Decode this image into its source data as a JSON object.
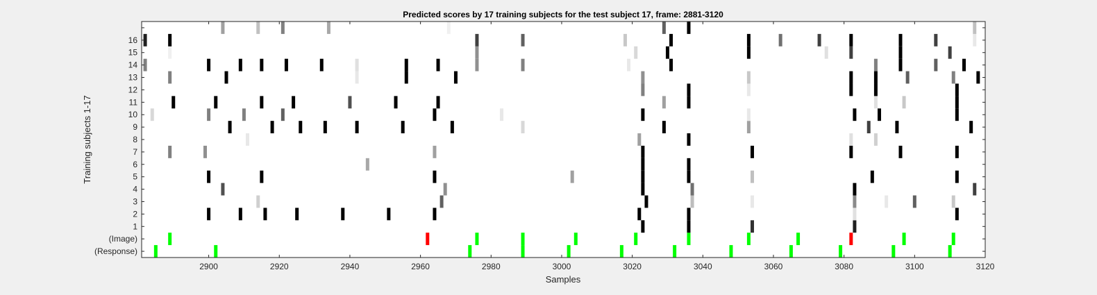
{
  "chart_data": {
    "type": "heatmap",
    "title": "Predicted scores by 17 training subjects for the test subject 17, frame: 2881-3120",
    "xlabel": "Samples",
    "ylabel": "Training subjects 1-17",
    "xlim": [
      2881,
      3120
    ],
    "x_ticks": [
      2900,
      2920,
      2940,
      2960,
      2980,
      3000,
      3020,
      3040,
      3060,
      3080,
      3100,
      3120
    ],
    "y_tick_labels": [
      "(Response)",
      "(Image)",
      "1",
      "2",
      "3",
      "4",
      "5",
      "6",
      "7",
      "8",
      "9",
      "10",
      "11",
      "12",
      "13",
      "14",
      "15",
      "16",
      ""
    ],
    "grid": false,
    "background_color": "#ffffff",
    "figure_color": "#f0f0f0",
    "marker_colors": {
      "correct": "#00ff00",
      "incorrect": "#ff0000"
    },
    "rows": [
      {
        "label": "(Response)",
        "marks": [
          {
            "x": 2885,
            "c": "#00ff00"
          },
          {
            "x": 2902,
            "c": "#00ff00"
          },
          {
            "x": 2974,
            "c": "#00ff00"
          },
          {
            "x": 2989,
            "c": "#00ff00"
          },
          {
            "x": 3002,
            "c": "#00ff00"
          },
          {
            "x": 3017,
            "c": "#00ff00"
          },
          {
            "x": 3032,
            "c": "#00ff00"
          },
          {
            "x": 3048,
            "c": "#00ff00"
          },
          {
            "x": 3065,
            "c": "#00ff00"
          },
          {
            "x": 3079,
            "c": "#00ff00"
          },
          {
            "x": 3094,
            "c": "#00ff00"
          },
          {
            "x": 3110,
            "c": "#00ff00"
          }
        ]
      },
      {
        "label": "(Image)",
        "marks": [
          {
            "x": 2889,
            "c": "#00ff00"
          },
          {
            "x": 2962,
            "c": "#ff0000"
          },
          {
            "x": 2976,
            "c": "#00ff00"
          },
          {
            "x": 2989,
            "c": "#00ff00"
          },
          {
            "x": 3004,
            "c": "#00ff00"
          },
          {
            "x": 3021,
            "c": "#00ff00"
          },
          {
            "x": 3036,
            "c": "#00ff00"
          },
          {
            "x": 3053,
            "c": "#00ff00"
          },
          {
            "x": 3067,
            "c": "#00ff00"
          },
          {
            "x": 3082,
            "c": "#ff0000"
          },
          {
            "x": 3097,
            "c": "#00ff00"
          },
          {
            "x": 3111,
            "c": "#00ff00"
          }
        ]
      },
      {
        "label": "1",
        "marks": [
          {
            "x": 3023,
            "c": "#000000"
          },
          {
            "x": 3036,
            "c": "#000000"
          },
          {
            "x": 3054,
            "c": "#303030"
          },
          {
            "x": 3083,
            "c": "#202020"
          }
        ]
      },
      {
        "label": "2",
        "marks": [
          {
            "x": 2900,
            "c": "#000000"
          },
          {
            "x": 2909,
            "c": "#000000"
          },
          {
            "x": 2916,
            "c": "#000000"
          },
          {
            "x": 2925,
            "c": "#000000"
          },
          {
            "x": 2938,
            "c": "#000000"
          },
          {
            "x": 2951,
            "c": "#000000"
          },
          {
            "x": 2964,
            "c": "#000000"
          },
          {
            "x": 3022,
            "c": "#000000"
          },
          {
            "x": 3036,
            "c": "#000000"
          },
          {
            "x": 3083,
            "c": "#e0e0e0"
          },
          {
            "x": 3112,
            "c": "#000000"
          }
        ]
      },
      {
        "label": "3",
        "marks": [
          {
            "x": 2914,
            "c": "#cfcfcf"
          },
          {
            "x": 2966,
            "c": "#606060"
          },
          {
            "x": 3024,
            "c": "#000000"
          },
          {
            "x": 3037,
            "c": "#bdbdbd"
          },
          {
            "x": 3054,
            "c": "#e8e8e8"
          },
          {
            "x": 3083,
            "c": "#8a8a8a"
          },
          {
            "x": 3092,
            "c": "#e8e8e8"
          },
          {
            "x": 3100,
            "c": "#606060"
          },
          {
            "x": 3111,
            "c": "#c8c8c8"
          }
        ]
      },
      {
        "label": "4",
        "marks": [
          {
            "x": 2904,
            "c": "#505050"
          },
          {
            "x": 2967,
            "c": "#909090"
          },
          {
            "x": 3023,
            "c": "#000000"
          },
          {
            "x": 3037,
            "c": "#707070"
          },
          {
            "x": 3083,
            "c": "#000000"
          },
          {
            "x": 3117,
            "c": "#404040"
          }
        ]
      },
      {
        "label": "5",
        "marks": [
          {
            "x": 2900,
            "c": "#000000"
          },
          {
            "x": 2915,
            "c": "#000000"
          },
          {
            "x": 2964,
            "c": "#000000"
          },
          {
            "x": 3003,
            "c": "#a0a0a0"
          },
          {
            "x": 3023,
            "c": "#000000"
          },
          {
            "x": 3036,
            "c": "#000000"
          },
          {
            "x": 3054,
            "c": "#c0c0c0"
          },
          {
            "x": 3088,
            "c": "#000000"
          },
          {
            "x": 3112,
            "c": "#000000"
          }
        ]
      },
      {
        "label": "6",
        "marks": [
          {
            "x": 2945,
            "c": "#a8a8a8"
          },
          {
            "x": 3023,
            "c": "#000000"
          },
          {
            "x": 3036,
            "c": "#000000"
          }
        ]
      },
      {
        "label": "7",
        "marks": [
          {
            "x": 2889,
            "c": "#808080"
          },
          {
            "x": 2899,
            "c": "#909090"
          },
          {
            "x": 2964,
            "c": "#a0a0a0"
          },
          {
            "x": 3023,
            "c": "#000000"
          },
          {
            "x": 3054,
            "c": "#000000"
          },
          {
            "x": 3082,
            "c": "#000000"
          },
          {
            "x": 3096,
            "c": "#000000"
          },
          {
            "x": 3112,
            "c": "#000000"
          }
        ]
      },
      {
        "label": "8",
        "marks": [
          {
            "x": 2911,
            "c": "#e8e8e8"
          },
          {
            "x": 3022,
            "c": "#a0a0a0"
          },
          {
            "x": 3036,
            "c": "#000000"
          },
          {
            "x": 3082,
            "c": "#e0e0e0"
          },
          {
            "x": 3089,
            "c": "#d0d0d0"
          }
        ]
      },
      {
        "label": "9",
        "marks": [
          {
            "x": 2906,
            "c": "#000000"
          },
          {
            "x": 2918,
            "c": "#000000"
          },
          {
            "x": 2926,
            "c": "#000000"
          },
          {
            "x": 2933,
            "c": "#000000"
          },
          {
            "x": 2942,
            "c": "#000000"
          },
          {
            "x": 2955,
            "c": "#000000"
          },
          {
            "x": 2969,
            "c": "#000000"
          },
          {
            "x": 2989,
            "c": "#d8d8d8"
          },
          {
            "x": 3029,
            "c": "#000000"
          },
          {
            "x": 3053,
            "c": "#a0a0a0"
          },
          {
            "x": 3087,
            "c": "#404040"
          },
          {
            "x": 3095,
            "c": "#000000"
          },
          {
            "x": 3116,
            "c": "#000000"
          }
        ]
      },
      {
        "label": "10",
        "marks": [
          {
            "x": 2884,
            "c": "#d8d8d8"
          },
          {
            "x": 2900,
            "c": "#808080"
          },
          {
            "x": 2910,
            "c": "#808080"
          },
          {
            "x": 2921,
            "c": "#606060"
          },
          {
            "x": 2964,
            "c": "#000000"
          },
          {
            "x": 2983,
            "c": "#e8e8e8"
          },
          {
            "x": 3023,
            "c": "#000000"
          },
          {
            "x": 3053,
            "c": "#e8e8e8"
          },
          {
            "x": 3083,
            "c": "#000000"
          },
          {
            "x": 3090,
            "c": "#000000"
          },
          {
            "x": 3112,
            "c": "#000000"
          }
        ]
      },
      {
        "label": "11",
        "marks": [
          {
            "x": 2890,
            "c": "#000000"
          },
          {
            "x": 2902,
            "c": "#000000"
          },
          {
            "x": 2915,
            "c": "#000000"
          },
          {
            "x": 2924,
            "c": "#000000"
          },
          {
            "x": 2940,
            "c": "#505050"
          },
          {
            "x": 2953,
            "c": "#000000"
          },
          {
            "x": 2965,
            "c": "#000000"
          },
          {
            "x": 3029,
            "c": "#a0a0a0"
          },
          {
            "x": 3036,
            "c": "#000000"
          },
          {
            "x": 3089,
            "c": "#e0e0e0"
          },
          {
            "x": 3097,
            "c": "#c8c8c8"
          },
          {
            "x": 3112,
            "c": "#000000"
          }
        ]
      },
      {
        "label": "12",
        "marks": [
          {
            "x": 3023,
            "c": "#808080"
          },
          {
            "x": 3036,
            "c": "#000000"
          },
          {
            "x": 3053,
            "c": "#e8e8e8"
          },
          {
            "x": 3082,
            "c": "#000000"
          },
          {
            "x": 3089,
            "c": "#000000"
          },
          {
            "x": 3112,
            "c": "#000000"
          }
        ]
      },
      {
        "label": "13",
        "marks": [
          {
            "x": 2889,
            "c": "#808080"
          },
          {
            "x": 2905,
            "c": "#000000"
          },
          {
            "x": 2942,
            "c": "#e8e8e8"
          },
          {
            "x": 2956,
            "c": "#000000"
          },
          {
            "x": 2970,
            "c": "#000000"
          },
          {
            "x": 3023,
            "c": "#909090"
          },
          {
            "x": 3053,
            "c": "#c8c8c8"
          },
          {
            "x": 3082,
            "c": "#000000"
          },
          {
            "x": 3089,
            "c": "#000000"
          },
          {
            "x": 3098,
            "c": "#606060"
          },
          {
            "x": 3111,
            "c": "#808080"
          },
          {
            "x": 3118,
            "c": "#000000"
          }
        ]
      },
      {
        "label": "14",
        "marks": [
          {
            "x": 2882,
            "c": "#808080"
          },
          {
            "x": 2900,
            "c": "#000000"
          },
          {
            "x": 2909,
            "c": "#000000"
          },
          {
            "x": 2915,
            "c": "#000000"
          },
          {
            "x": 2922,
            "c": "#000000"
          },
          {
            "x": 2932,
            "c": "#000000"
          },
          {
            "x": 2942,
            "c": "#e0e0e0"
          },
          {
            "x": 2956,
            "c": "#000000"
          },
          {
            "x": 2965,
            "c": "#000000"
          },
          {
            "x": 2976,
            "c": "#909090"
          },
          {
            "x": 2989,
            "c": "#808080"
          },
          {
            "x": 3019,
            "c": "#e8e8e8"
          },
          {
            "x": 3031,
            "c": "#000000"
          },
          {
            "x": 3089,
            "c": "#808080"
          },
          {
            "x": 3096,
            "c": "#000000"
          },
          {
            "x": 3106,
            "c": "#606060"
          },
          {
            "x": 3114,
            "c": "#000000"
          }
        ]
      },
      {
        "label": "15",
        "marks": [
          {
            "x": 2889,
            "c": "#f0f0f0"
          },
          {
            "x": 2976,
            "c": "#909090"
          },
          {
            "x": 3021,
            "c": "#d8d8d8"
          },
          {
            "x": 3030,
            "c": "#000000"
          },
          {
            "x": 3053,
            "c": "#000000"
          },
          {
            "x": 3075,
            "c": "#e0e0e0"
          },
          {
            "x": 3082,
            "c": "#404040"
          },
          {
            "x": 3096,
            "c": "#000000"
          },
          {
            "x": 3110,
            "c": "#404040"
          }
        ]
      },
      {
        "label": "16",
        "marks": [
          {
            "x": 2882,
            "c": "#202020"
          },
          {
            "x": 2889,
            "c": "#000000"
          },
          {
            "x": 2976,
            "c": "#404040"
          },
          {
            "x": 2989,
            "c": "#606060"
          },
          {
            "x": 3018,
            "c": "#c8c8c8"
          },
          {
            "x": 3031,
            "c": "#000000"
          },
          {
            "x": 3053,
            "c": "#000000"
          },
          {
            "x": 3062,
            "c": "#707070"
          },
          {
            "x": 3073,
            "c": "#404040"
          },
          {
            "x": 3082,
            "c": "#000000"
          },
          {
            "x": 3096,
            "c": "#000000"
          },
          {
            "x": 3106,
            "c": "#404040"
          },
          {
            "x": 3117,
            "c": "#e8e8e8"
          }
        ]
      },
      {
        "label": "",
        "marks": [
          {
            "x": 2904,
            "c": "#a0a0a0"
          },
          {
            "x": 2914,
            "c": "#c0c0c0"
          },
          {
            "x": 2921,
            "c": "#808080"
          },
          {
            "x": 2934,
            "c": "#a8a8a8"
          },
          {
            "x": 2968,
            "c": "#f0f0f0"
          },
          {
            "x": 3029,
            "c": "#606060"
          },
          {
            "x": 3036,
            "c": "#000000"
          },
          {
            "x": 3117,
            "c": "#c0c0c0"
          }
        ]
      }
    ]
  }
}
